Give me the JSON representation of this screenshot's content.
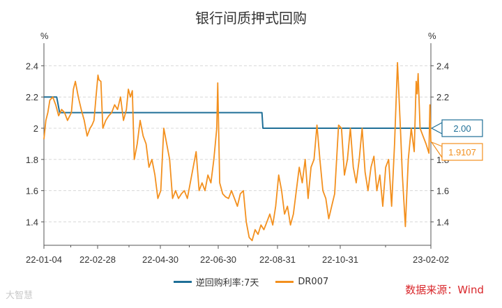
{
  "title": "银行间质押式回购",
  "unit_left": "%",
  "unit_right": "%",
  "source": "数据来源：Wind",
  "watermark": "大智慧",
  "colors": {
    "reverse_repo": "#1f6f97",
    "dr007": "#f3901e",
    "grid": "#d8d8d8",
    "axis": "#555555"
  },
  "chart_data": {
    "type": "line",
    "title": "银行间质押式回购",
    "xlabel": "",
    "ylabel": "%",
    "x_ticks": [
      "22-01-04",
      "22-02-28",
      "22-04-30",
      "22-06-30",
      "22-08-31",
      "22-10-31",
      "23-02-02"
    ],
    "ylim": [
      1.25,
      2.5
    ],
    "y_ticks": [
      1.4,
      1.6,
      1.8,
      2,
      2.2,
      2.4
    ],
    "y_tick_labels": [
      "1.4",
      "1.6",
      "1.8",
      "2",
      "2.2",
      "2.4"
    ],
    "grid": true,
    "legend_position": "bottom",
    "series": [
      {
        "name": "逆回购利率:7天",
        "color": "#1f6f97",
        "points": [
          [
            "2022-01-04",
            2.2
          ],
          [
            "2022-01-17",
            2.2
          ],
          [
            "2022-01-20",
            2.1
          ],
          [
            "2022-08-14",
            2.1
          ],
          [
            "2022-08-15",
            2.0
          ],
          [
            "2023-02-02",
            2.0
          ]
        ]
      },
      {
        "name": "DR007",
        "color": "#f3901e",
        "points": [
          [
            "2022-01-04",
            1.93
          ],
          [
            "2022-01-06",
            2.05
          ],
          [
            "2022-01-08",
            2.1
          ],
          [
            "2022-01-10",
            2.18
          ],
          [
            "2022-01-13",
            2.2
          ],
          [
            "2022-01-16",
            2.15
          ],
          [
            "2022-01-19",
            2.08
          ],
          [
            "2022-01-22",
            2.12
          ],
          [
            "2022-01-25",
            2.1
          ],
          [
            "2022-01-28",
            2.05
          ],
          [
            "2022-02-01",
            2.1
          ],
          [
            "2022-02-03",
            2.25
          ],
          [
            "2022-02-05",
            2.3
          ],
          [
            "2022-02-08",
            2.2
          ],
          [
            "2022-02-11",
            2.12
          ],
          [
            "2022-02-14",
            2.05
          ],
          [
            "2022-02-17",
            1.95
          ],
          [
            "2022-02-20",
            2.0
          ],
          [
            "2022-02-22",
            2.02
          ],
          [
            "2022-02-24",
            2.05
          ],
          [
            "2022-02-26",
            2.2
          ],
          [
            "2022-02-28",
            2.34
          ],
          [
            "2022-03-01",
            2.31
          ],
          [
            "2022-03-03",
            2.3
          ],
          [
            "2022-03-05",
            2.0
          ],
          [
            "2022-03-08",
            2.05
          ],
          [
            "2022-03-11",
            2.08
          ],
          [
            "2022-03-14",
            2.1
          ],
          [
            "2022-03-17",
            2.15
          ],
          [
            "2022-03-20",
            2.12
          ],
          [
            "2022-03-23",
            2.2
          ],
          [
            "2022-03-26",
            2.05
          ],
          [
            "2022-03-29",
            2.12
          ],
          [
            "2022-03-31",
            2.25
          ],
          [
            "2022-04-02",
            2.2
          ],
          [
            "2022-04-04",
            2.24
          ],
          [
            "2022-04-06",
            1.8
          ],
          [
            "2022-04-09",
            1.9
          ],
          [
            "2022-04-12",
            2.05
          ],
          [
            "2022-04-15",
            1.95
          ],
          [
            "2022-04-18",
            1.9
          ],
          [
            "2022-04-21",
            1.75
          ],
          [
            "2022-04-24",
            1.8
          ],
          [
            "2022-04-27",
            1.7
          ],
          [
            "2022-04-30",
            1.55
          ],
          [
            "2022-05-03",
            1.6
          ],
          [
            "2022-05-06",
            2.0
          ],
          [
            "2022-05-09",
            1.9
          ],
          [
            "2022-05-12",
            1.8
          ],
          [
            "2022-05-15",
            1.55
          ],
          [
            "2022-05-18",
            1.6
          ],
          [
            "2022-05-21",
            1.55
          ],
          [
            "2022-05-24",
            1.58
          ],
          [
            "2022-05-27",
            1.6
          ],
          [
            "2022-05-30",
            1.55
          ],
          [
            "2022-06-02",
            1.65
          ],
          [
            "2022-06-05",
            1.75
          ],
          [
            "2022-06-08",
            1.85
          ],
          [
            "2022-06-11",
            1.6
          ],
          [
            "2022-06-14",
            1.65
          ],
          [
            "2022-06-17",
            1.6
          ],
          [
            "2022-06-20",
            1.7
          ],
          [
            "2022-06-23",
            1.65
          ],
          [
            "2022-06-26",
            1.8
          ],
          [
            "2022-06-29",
            2.0
          ],
          [
            "2022-06-30",
            2.29
          ],
          [
            "2022-07-02",
            1.65
          ],
          [
            "2022-07-05",
            1.58
          ],
          [
            "2022-07-08",
            1.56
          ],
          [
            "2022-07-11",
            1.55
          ],
          [
            "2022-07-14",
            1.6
          ],
          [
            "2022-07-17",
            1.55
          ],
          [
            "2022-07-20",
            1.5
          ],
          [
            "2022-07-23",
            1.58
          ],
          [
            "2022-07-26",
            1.6
          ],
          [
            "2022-07-29",
            1.4
          ],
          [
            "2022-08-01",
            1.3
          ],
          [
            "2022-08-04",
            1.28
          ],
          [
            "2022-08-07",
            1.35
          ],
          [
            "2022-08-10",
            1.32
          ],
          [
            "2022-08-13",
            1.38
          ],
          [
            "2022-08-16",
            1.35
          ],
          [
            "2022-08-19",
            1.4
          ],
          [
            "2022-08-22",
            1.45
          ],
          [
            "2022-08-25",
            1.38
          ],
          [
            "2022-08-28",
            1.5
          ],
          [
            "2022-08-31",
            1.7
          ],
          [
            "2022-09-03",
            1.6
          ],
          [
            "2022-09-06",
            1.45
          ],
          [
            "2022-09-09",
            1.5
          ],
          [
            "2022-09-12",
            1.38
          ],
          [
            "2022-09-15",
            1.45
          ],
          [
            "2022-09-18",
            1.6
          ],
          [
            "2022-09-21",
            1.75
          ],
          [
            "2022-09-24",
            1.65
          ],
          [
            "2022-09-27",
            1.8
          ],
          [
            "2022-09-30",
            1.55
          ],
          [
            "2022-10-03",
            1.75
          ],
          [
            "2022-10-06",
            1.8
          ],
          [
            "2022-10-09",
            2.02
          ],
          [
            "2022-10-12",
            1.8
          ],
          [
            "2022-10-15",
            1.6
          ],
          [
            "2022-10-18",
            1.55
          ],
          [
            "2022-10-21",
            1.42
          ],
          [
            "2022-10-24",
            1.5
          ],
          [
            "2022-10-27",
            1.58
          ],
          [
            "2022-10-31",
            2.02
          ],
          [
            "2022-11-03",
            2.0
          ],
          [
            "2022-11-06",
            1.7
          ],
          [
            "2022-11-09",
            1.8
          ],
          [
            "2022-11-12",
            2.0
          ],
          [
            "2022-11-15",
            1.75
          ],
          [
            "2022-11-18",
            1.65
          ],
          [
            "2022-11-21",
            1.8
          ],
          [
            "2022-11-24",
            2.0
          ],
          [
            "2022-11-27",
            1.72
          ],
          [
            "2022-11-30",
            1.6
          ],
          [
            "2022-12-03",
            1.75
          ],
          [
            "2022-12-06",
            1.82
          ],
          [
            "2022-12-09",
            1.6
          ],
          [
            "2022-12-12",
            1.7
          ],
          [
            "2022-12-15",
            1.5
          ],
          [
            "2022-12-18",
            1.75
          ],
          [
            "2022-12-21",
            1.8
          ],
          [
            "2022-12-24",
            1.5
          ],
          [
            "2022-12-27",
            1.9
          ],
          [
            "2022-12-30",
            2.42
          ],
          [
            "2023-01-02",
            2.0
          ],
          [
            "2023-01-04",
            1.7
          ],
          [
            "2023-01-07",
            1.37
          ],
          [
            "2023-01-10",
            1.8
          ],
          [
            "2023-01-13",
            2.0
          ],
          [
            "2023-01-16",
            1.85
          ],
          [
            "2023-01-18",
            2.3
          ],
          [
            "2023-01-19",
            2.22
          ],
          [
            "2023-01-20",
            2.35
          ],
          [
            "2023-01-22",
            2.0
          ],
          [
            "2023-01-25",
            1.95
          ],
          [
            "2023-01-28",
            1.9
          ],
          [
            "2023-01-31",
            1.84
          ],
          [
            "2023-02-01",
            2.15
          ],
          [
            "2023-02-02",
            1.9107
          ]
        ]
      }
    ],
    "annotations": [
      {
        "label": "2.00",
        "value": 2.0,
        "series": "逆回购利率:7天"
      },
      {
        "label": "1.9107",
        "value": 1.9107,
        "series": "DR007"
      }
    ]
  }
}
